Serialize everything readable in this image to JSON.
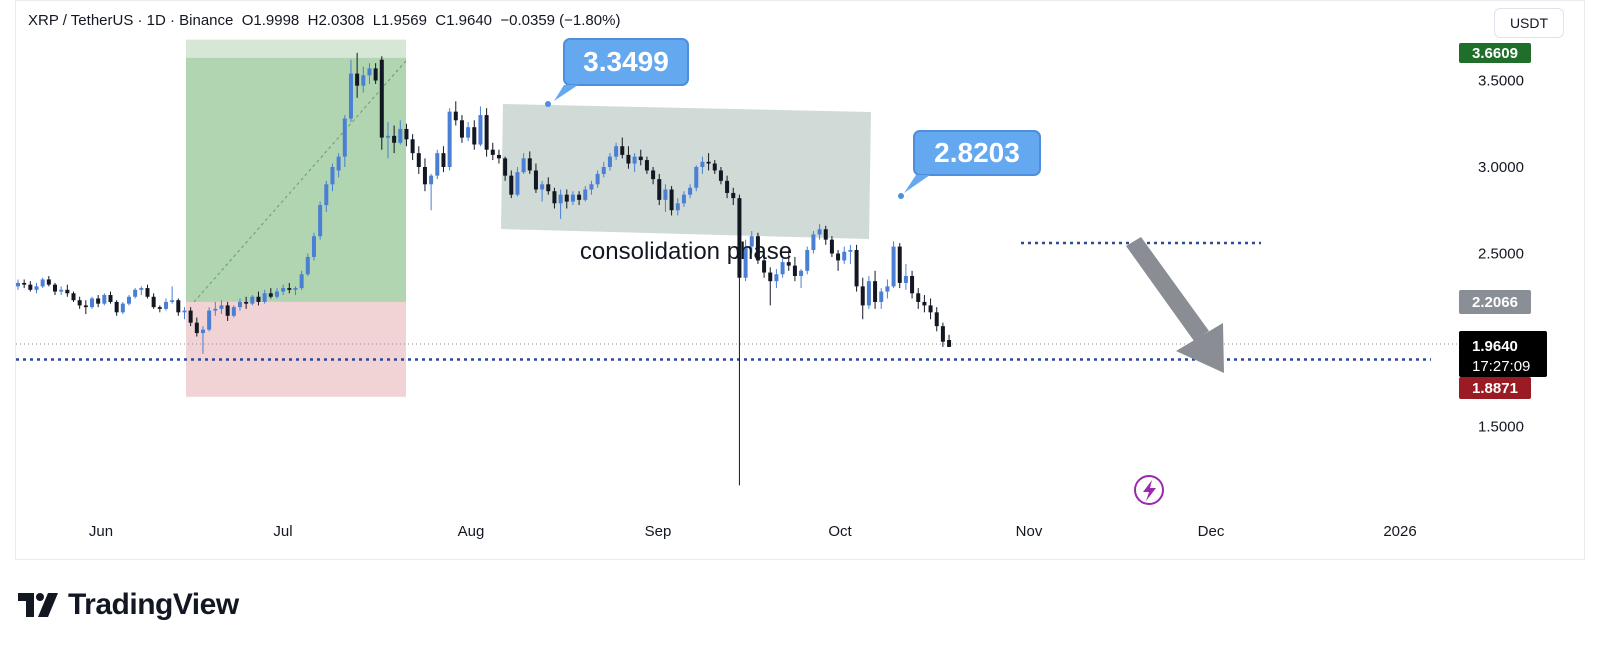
{
  "header": {
    "symbol": "XRP / TetherUS · 1D · Binance",
    "open_label": "O",
    "open": "1.9998",
    "high_label": "H",
    "high": "2.0308",
    "low_label": "L",
    "low": "1.9569",
    "close_label": "C",
    "close": "1.9640",
    "change": "−0.0359 (−1.80%)"
  },
  "currency_button": "USDT",
  "brand": "TradingView",
  "colors": {
    "up": "#4a7fd4",
    "down": "#131722",
    "long_profit": "#a9cfa9",
    "long_loss": "#f2d3d5",
    "consolidation_box": "#c8d4cf",
    "callout": "#64a8f0",
    "dotted_line": "#2a4a9c",
    "price_high_badge": "#1f6e2a",
    "price_low_badge": "#9a1b24",
    "current_badge": "#000000",
    "grey_badge": "#8a8e97"
  },
  "chart_data": {
    "type": "candlestick",
    "title": "",
    "xlabel": "",
    "ylabel": "",
    "ylim": [
      1.05,
      3.75
    ],
    "x_ticks": [
      "Jun",
      "Jul",
      "Aug",
      "Sep",
      "Oct",
      "Nov",
      "Dec",
      "2026"
    ],
    "y_ticks": [
      "3.5000",
      "3.0000",
      "2.5000",
      "1.5000"
    ],
    "price_badges": {
      "high": "3.6609",
      "level": "2.2066",
      "current": "1.9640",
      "countdown": "17:27:09",
      "support": "1.8871"
    },
    "callouts": [
      {
        "label": "3.3499",
        "value": 3.3499
      },
      {
        "label": "2.8203",
        "value": 2.8203
      }
    ],
    "annotation": "consolidation phase",
    "resistance_level": 2.54,
    "support_level": 1.8871,
    "long_position": {
      "entry": 2.22,
      "target": 3.66,
      "stop": 1.92
    },
    "consolidation_range": [
      2.62,
      3.38
    ],
    "candles_ohlc_daily_from_may_29": [
      [
        2.31,
        2.35,
        2.29,
        2.33
      ],
      [
        2.33,
        2.35,
        2.3,
        2.32
      ],
      [
        2.32,
        2.34,
        2.28,
        2.29
      ],
      [
        2.29,
        2.33,
        2.27,
        2.31
      ],
      [
        2.31,
        2.36,
        2.3,
        2.35
      ],
      [
        2.35,
        2.37,
        2.31,
        2.32
      ],
      [
        2.32,
        2.33,
        2.26,
        2.28
      ],
      [
        2.28,
        2.31,
        2.26,
        2.29
      ],
      [
        2.29,
        2.32,
        2.25,
        2.27
      ],
      [
        2.27,
        2.28,
        2.22,
        2.23
      ],
      [
        2.23,
        2.25,
        2.18,
        2.2
      ],
      [
        2.2,
        2.23,
        2.15,
        2.19
      ],
      [
        2.19,
        2.25,
        2.18,
        2.24
      ],
      [
        2.24,
        2.26,
        2.19,
        2.21
      ],
      [
        2.21,
        2.27,
        2.2,
        2.26
      ],
      [
        2.26,
        2.28,
        2.21,
        2.22
      ],
      [
        2.22,
        2.23,
        2.14,
        2.16
      ],
      [
        2.16,
        2.22,
        2.15,
        2.21
      ],
      [
        2.21,
        2.26,
        2.2,
        2.25
      ],
      [
        2.25,
        2.3,
        2.24,
        2.29
      ],
      [
        2.29,
        2.31,
        2.26,
        2.3
      ],
      [
        2.3,
        2.32,
        2.24,
        2.25
      ],
      [
        2.25,
        2.27,
        2.18,
        2.19
      ],
      [
        2.19,
        2.2,
        2.16,
        2.18
      ],
      [
        2.18,
        2.24,
        2.17,
        2.22
      ],
      [
        2.22,
        2.31,
        2.21,
        2.23
      ],
      [
        2.23,
        2.24,
        2.14,
        2.16
      ],
      [
        2.16,
        2.19,
        2.12,
        2.17
      ],
      [
        2.17,
        2.19,
        2.08,
        2.1
      ],
      [
        2.1,
        2.13,
        2.02,
        2.04
      ],
      [
        2.04,
        2.08,
        1.92,
        2.06
      ],
      [
        2.06,
        2.19,
        2.05,
        2.17
      ],
      [
        2.17,
        2.22,
        2.14,
        2.18
      ],
      [
        2.18,
        2.23,
        2.15,
        2.2
      ],
      [
        2.2,
        2.22,
        2.11,
        2.14
      ],
      [
        2.14,
        2.2,
        2.13,
        2.19
      ],
      [
        2.19,
        2.24,
        2.17,
        2.22
      ],
      [
        2.22,
        2.25,
        2.18,
        2.21
      ],
      [
        2.21,
        2.26,
        2.2,
        2.25
      ],
      [
        2.25,
        2.28,
        2.2,
        2.22
      ],
      [
        2.22,
        2.29,
        2.21,
        2.27
      ],
      [
        2.27,
        2.3,
        2.24,
        2.25
      ],
      [
        2.25,
        2.3,
        2.24,
        2.28
      ],
      [
        2.28,
        2.32,
        2.26,
        2.3
      ],
      [
        2.3,
        2.33,
        2.27,
        2.29
      ],
      [
        2.29,
        2.31,
        2.26,
        2.3
      ],
      [
        2.3,
        2.4,
        2.29,
        2.38
      ],
      [
        2.38,
        2.5,
        2.37,
        2.48
      ],
      [
        2.48,
        2.62,
        2.46,
        2.6
      ],
      [
        2.6,
        2.8,
        2.58,
        2.78
      ],
      [
        2.78,
        2.92,
        2.74,
        2.9
      ],
      [
        2.9,
        3.02,
        2.86,
        3.0
      ],
      [
        2.98,
        3.08,
        2.94,
        3.06
      ],
      [
        3.06,
        3.3,
        3.0,
        3.28
      ],
      [
        3.28,
        3.62,
        3.26,
        3.54
      ],
      [
        3.54,
        3.66,
        3.4,
        3.47
      ],
      [
        3.47,
        3.58,
        3.43,
        3.53
      ],
      [
        3.53,
        3.6,
        3.48,
        3.57
      ],
      [
        3.57,
        3.6,
        3.48,
        3.5
      ],
      [
        3.62,
        3.64,
        3.1,
        3.17
      ],
      [
        3.17,
        3.26,
        3.05,
        3.18
      ],
      [
        3.18,
        3.24,
        3.08,
        3.14
      ],
      [
        3.14,
        3.27,
        3.13,
        3.22
      ],
      [
        3.22,
        3.25,
        3.12,
        3.16
      ],
      [
        3.16,
        3.19,
        3.04,
        3.08
      ],
      [
        3.08,
        3.12,
        2.96,
        3.0
      ],
      [
        3.0,
        3.05,
        2.86,
        2.9
      ],
      [
        2.9,
        2.96,
        2.75,
        2.95
      ],
      [
        2.95,
        3.1,
        2.93,
        3.08
      ],
      [
        3.08,
        3.12,
        2.97,
        3.0
      ],
      [
        3.0,
        3.34,
        2.98,
        3.32
      ],
      [
        3.32,
        3.38,
        3.24,
        3.27
      ],
      [
        3.27,
        3.3,
        3.14,
        3.17
      ],
      [
        3.17,
        3.26,
        3.15,
        3.23
      ],
      [
        3.23,
        3.27,
        3.1,
        3.13
      ],
      [
        3.13,
        3.35,
        3.12,
        3.3
      ],
      [
        3.3,
        3.34,
        3.06,
        3.1
      ],
      [
        3.1,
        3.14,
        3.04,
        3.07
      ],
      [
        3.07,
        3.1,
        3.02,
        3.05
      ],
      [
        3.05,
        3.06,
        2.92,
        2.95
      ],
      [
        2.95,
        2.98,
        2.82,
        2.84
      ],
      [
        2.84,
        3.0,
        2.83,
        2.97
      ],
      [
        2.97,
        3.08,
        2.96,
        3.05
      ],
      [
        3.05,
        3.09,
        2.96,
        2.98
      ],
      [
        2.98,
        3.02,
        2.85,
        2.87
      ],
      [
        2.87,
        2.92,
        2.8,
        2.9
      ],
      [
        2.9,
        2.94,
        2.84,
        2.86
      ],
      [
        2.86,
        2.88,
        2.76,
        2.79
      ],
      [
        2.79,
        2.87,
        2.7,
        2.84
      ],
      [
        2.84,
        2.87,
        2.76,
        2.8
      ],
      [
        2.8,
        2.86,
        2.78,
        2.84
      ],
      [
        2.84,
        2.86,
        2.78,
        2.81
      ],
      [
        2.81,
        2.89,
        2.8,
        2.87
      ],
      [
        2.87,
        2.92,
        2.84,
        2.9
      ],
      [
        2.9,
        2.98,
        2.88,
        2.96
      ],
      [
        2.96,
        3.03,
        2.94,
        3.0
      ],
      [
        3.0,
        3.08,
        2.98,
        3.06
      ],
      [
        3.06,
        3.14,
        3.04,
        3.12
      ],
      [
        3.12,
        3.17,
        3.05,
        3.07
      ],
      [
        3.07,
        3.12,
        2.99,
        3.02
      ],
      [
        3.02,
        3.08,
        2.97,
        3.06
      ],
      [
        3.06,
        3.1,
        3.01,
        3.04
      ],
      [
        3.04,
        3.06,
        2.96,
        2.98
      ],
      [
        2.98,
        3.0,
        2.9,
        2.93
      ],
      [
        2.93,
        2.96,
        2.78,
        2.81
      ],
      [
        2.81,
        2.9,
        2.74,
        2.87
      ],
      [
        2.87,
        2.89,
        2.72,
        2.75
      ],
      [
        2.75,
        2.82,
        2.72,
        2.79
      ],
      [
        2.79,
        2.86,
        2.77,
        2.84
      ],
      [
        2.84,
        2.9,
        2.82,
        2.88
      ],
      [
        2.88,
        3.01,
        2.86,
        3.0
      ],
      [
        3.0,
        3.06,
        2.96,
        3.03
      ],
      [
        3.03,
        3.08,
        2.98,
        3.02
      ],
      [
        3.02,
        3.04,
        2.96,
        2.98
      ],
      [
        2.98,
        3.0,
        2.9,
        2.92
      ],
      [
        2.92,
        2.95,
        2.82,
        2.85
      ],
      [
        2.85,
        2.88,
        2.78,
        2.82
      ],
      [
        2.82,
        2.84,
        1.16,
        2.36
      ],
      [
        2.36,
        2.58,
        2.34,
        2.54
      ],
      [
        2.54,
        2.63,
        2.5,
        2.6
      ],
      [
        2.6,
        2.62,
        2.44,
        2.46
      ],
      [
        2.46,
        2.48,
        2.36,
        2.39
      ],
      [
        2.39,
        2.42,
        2.2,
        2.34
      ],
      [
        2.34,
        2.41,
        2.3,
        2.38
      ],
      [
        2.38,
        2.47,
        2.36,
        2.45
      ],
      [
        2.45,
        2.52,
        2.4,
        2.43
      ],
      [
        2.43,
        2.48,
        2.34,
        2.37
      ],
      [
        2.37,
        2.41,
        2.3,
        2.4
      ],
      [
        2.4,
        2.54,
        2.38,
        2.52
      ],
      [
        2.52,
        2.63,
        2.5,
        2.61
      ],
      [
        2.61,
        2.67,
        2.58,
        2.64
      ],
      [
        2.64,
        2.66,
        2.55,
        2.58
      ],
      [
        2.58,
        2.6,
        2.48,
        2.5
      ],
      [
        2.5,
        2.52,
        2.4,
        2.46
      ],
      [
        2.46,
        2.54,
        2.44,
        2.51
      ],
      [
        2.51,
        2.55,
        2.44,
        2.52
      ],
      [
        2.52,
        2.55,
        2.28,
        2.31
      ],
      [
        2.31,
        2.36,
        2.12,
        2.2
      ],
      [
        2.2,
        2.37,
        2.18,
        2.34
      ],
      [
        2.34,
        2.4,
        2.18,
        2.22
      ],
      [
        2.22,
        2.3,
        2.18,
        2.28
      ],
      [
        2.28,
        2.35,
        2.24,
        2.31
      ],
      [
        2.31,
        2.57,
        2.3,
        2.54
      ],
      [
        2.54,
        2.56,
        2.3,
        2.33
      ],
      [
        2.33,
        2.44,
        2.29,
        2.37
      ],
      [
        2.37,
        2.4,
        2.24,
        2.27
      ],
      [
        2.27,
        2.3,
        2.18,
        2.22
      ],
      [
        2.22,
        2.26,
        2.16,
        2.2
      ],
      [
        2.2,
        2.24,
        2.12,
        2.16
      ],
      [
        2.16,
        2.19,
        2.05,
        2.08
      ],
      [
        2.08,
        2.1,
        1.96,
        1.99
      ],
      [
        2.0,
        2.03,
        1.96,
        1.96
      ]
    ]
  }
}
